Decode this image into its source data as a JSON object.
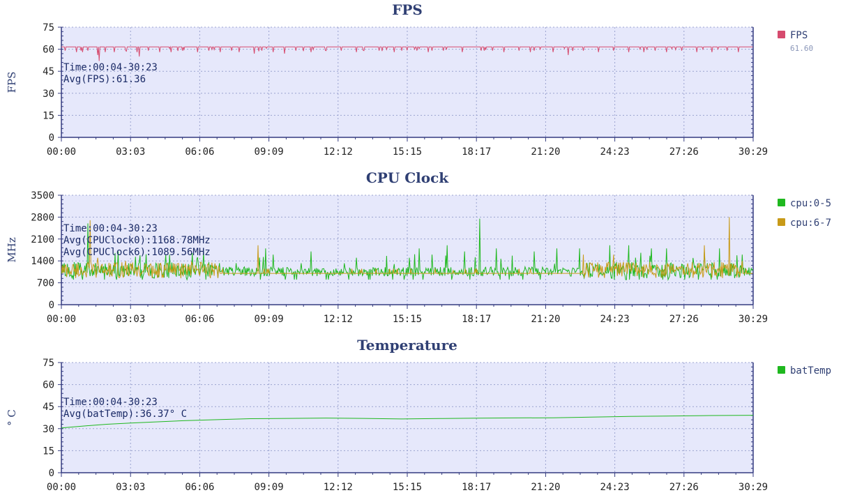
{
  "chart_data": [
    {
      "type": "line",
      "title": "FPS",
      "ylabel": "FPS",
      "ylim": [
        0,
        75
      ],
      "yticks": [
        0,
        15,
        30,
        45,
        60,
        75
      ],
      "x_tick_labels": [
        "00:00",
        "03:03",
        "06:06",
        "09:09",
        "12:12",
        "15:15",
        "18:17",
        "21:20",
        "24:23",
        "27:26",
        "30:29"
      ],
      "x_range_seconds": [
        0,
        1829
      ],
      "grid": true,
      "legend_position": "right",
      "annotations": [
        "Time:00:04-30:23",
        "Avg(FPS):61.36"
      ],
      "series": [
        {
          "name": "FPS",
          "legend_value": "61.60",
          "color": "#d64b6e",
          "baseline": 61.6,
          "dips": [
            [
              10,
              59
            ],
            [
              40,
              58
            ],
            [
              55,
              58
            ],
            [
              70,
              59
            ],
            [
              95,
              56
            ],
            [
              100,
              52
            ],
            [
              115,
              58
            ],
            [
              140,
              58
            ],
            [
              170,
              59
            ],
            [
              200,
              58
            ],
            [
              205,
              55
            ],
            [
              230,
              59
            ],
            [
              260,
              58
            ],
            [
              290,
              58
            ],
            [
              320,
              59
            ],
            [
              360,
              58
            ],
            [
              390,
              59
            ],
            [
              420,
              58
            ],
            [
              450,
              59
            ],
            [
              470,
              58
            ],
            [
              510,
              57
            ],
            [
              530,
              59
            ],
            [
              560,
              58
            ],
            [
              590,
              57
            ],
            [
              620,
              59
            ],
            [
              660,
              58
            ],
            [
              700,
              59
            ],
            [
              740,
              59
            ],
            [
              780,
              58
            ],
            [
              800,
              59
            ],
            [
              840,
              59
            ],
            [
              880,
              58
            ],
            [
              900,
              59
            ],
            [
              940,
              59
            ],
            [
              970,
              58
            ],
            [
              980,
              59
            ],
            [
              1010,
              59
            ],
            [
              1060,
              58
            ],
            [
              1110,
              59
            ],
            [
              1140,
              59
            ],
            [
              1170,
              58
            ],
            [
              1210,
              59
            ],
            [
              1240,
              58
            ],
            [
              1250,
              59
            ],
            [
              1300,
              58
            ],
            [
              1340,
              56
            ],
            [
              1380,
              59
            ],
            [
              1420,
              58
            ],
            [
              1460,
              59
            ],
            [
              1500,
              58
            ],
            [
              1540,
              58
            ],
            [
              1570,
              59
            ],
            [
              1600,
              58
            ],
            [
              1640,
              59
            ],
            [
              1680,
              58
            ],
            [
              1720,
              58
            ],
            [
              1760,
              59
            ],
            [
              1790,
              58
            ]
          ]
        }
      ]
    },
    {
      "type": "line",
      "title": "CPU Clock",
      "ylabel": "MHz",
      "ylim": [
        0,
        3500
      ],
      "yticks": [
        0,
        700,
        1400,
        2100,
        2800,
        3500
      ],
      "x_tick_labels": [
        "00:00",
        "03:03",
        "06:06",
        "09:09",
        "12:12",
        "15:15",
        "18:17",
        "21:20",
        "24:23",
        "27:26",
        "30:29"
      ],
      "x_range_seconds": [
        0,
        1829
      ],
      "grid": true,
      "legend_position": "right",
      "annotations": [
        "Time:00:04-30:23",
        "Avg(CPUClock0):1168.78MHz",
        "Avg(CPUClock6):1089.56MHz"
      ],
      "series": [
        {
          "name": "cpu:0-5",
          "color": "#1fb81f",
          "avg": 1168.78,
          "baseline": 1000,
          "spikes": [
            [
              70,
              2600
            ],
            [
              150,
              1700
            ],
            [
              285,
              1600
            ],
            [
              375,
              1700
            ],
            [
              540,
              1800
            ],
            [
              560,
              1600
            ],
            [
              660,
              1700
            ],
            [
              780,
              1500
            ],
            [
              880,
              1300
            ],
            [
              920,
              1500
            ],
            [
              945,
              1800
            ],
            [
              980,
              1600
            ],
            [
              1020,
              1900
            ],
            [
              1065,
              1700
            ],
            [
              1105,
              2750
            ],
            [
              1150,
              1800
            ],
            [
              1250,
              1700
            ],
            [
              1310,
              1800
            ],
            [
              1370,
              1800
            ],
            [
              1450,
              1900
            ],
            [
              1500,
              1900
            ],
            [
              1560,
              1800
            ],
            [
              1600,
              1800
            ],
            [
              1700,
              1700
            ],
            [
              1740,
              1800
            ],
            [
              1800,
              1600
            ]
          ]
        },
        {
          "name": "cpu:6-7",
          "color": "#c89a18",
          "avg": 1089.56,
          "baseline": 1000,
          "spikes": [
            [
              75,
              2700
            ],
            [
              95,
              1500
            ],
            [
              170,
              1400
            ],
            [
              300,
              1300
            ],
            [
              520,
              1900
            ],
            [
              790,
              1100
            ],
            [
              1035,
              1100
            ],
            [
              1380,
              1600
            ],
            [
              1460,
              1600
            ],
            [
              1700,
              1900
            ],
            [
              1765,
              2800
            ],
            [
              1800,
              1400
            ]
          ]
        }
      ]
    },
    {
      "type": "line",
      "title": "Temperature",
      "ylabel": "° C",
      "ylim": [
        0,
        75
      ],
      "yticks": [
        0,
        15,
        30,
        45,
        60,
        75
      ],
      "x_tick_labels": [
        "00:00",
        "03:03",
        "06:06",
        "09:09",
        "12:12",
        "15:15",
        "18:17",
        "21:20",
        "24:23",
        "27:26",
        "30:29"
      ],
      "x_range_seconds": [
        0,
        1829
      ],
      "grid": true,
      "legend_position": "right",
      "annotations": [
        "Time:00:04-30:23",
        "Avg(batTemp):36.37° C"
      ],
      "series": [
        {
          "name": "batTemp",
          "color": "#1fb81f",
          "x": [
            0,
            60,
            120,
            183,
            250,
            330,
            420,
            500,
            600,
            700,
            800,
            900,
            1000,
            1100,
            1200,
            1300,
            1400,
            1500,
            1600,
            1700,
            1829
          ],
          "values": [
            30.5,
            31.8,
            33.0,
            33.8,
            34.6,
            35.5,
            36.2,
            36.8,
            37.0,
            37.2,
            37.0,
            36.6,
            36.9,
            37.1,
            37.3,
            37.4,
            37.9,
            38.3,
            38.6,
            38.9,
            39.1
          ]
        }
      ]
    }
  ]
}
